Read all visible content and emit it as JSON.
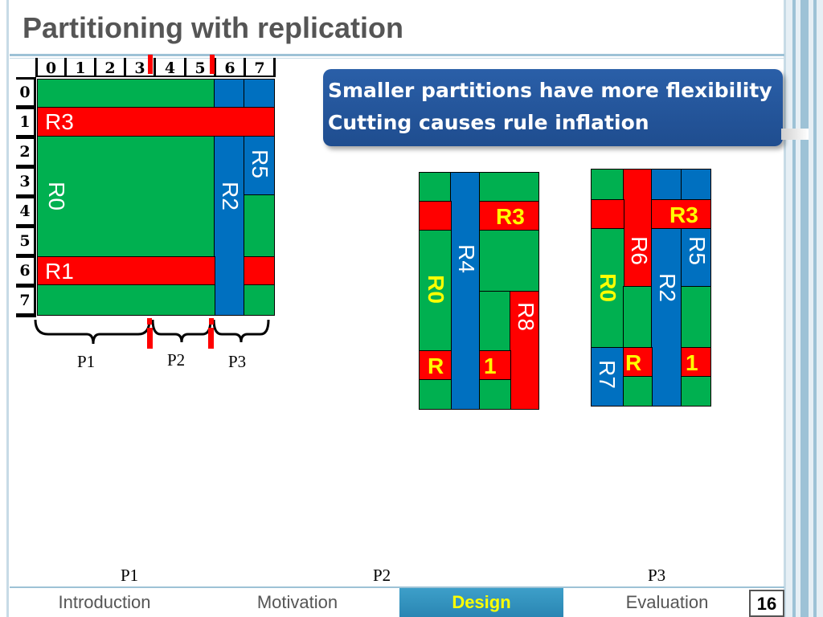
{
  "title": "Partitioning with replication",
  "grid": {
    "col_numbers": [
      "0",
      "1",
      "2",
      "3",
      "4",
      "5",
      "6",
      "7"
    ],
    "row_numbers": [
      "0",
      "1",
      "2",
      "3",
      "4",
      "5",
      "6",
      "7"
    ],
    "rules": {
      "r3": "R3",
      "r0": "R0",
      "r1": "R1",
      "r2": "R2",
      "r5": "R5"
    }
  },
  "braces": {
    "p1": "P1",
    "p2": "P2",
    "p3": "P3"
  },
  "callout": {
    "line1": "Smaller partitions have more flexibility",
    "line2": "Cutting causes rule inflation"
  },
  "switch_a": {
    "r3": "R3",
    "r4": "R4",
    "r0": "R0",
    "r8": "R8",
    "r_left": "R",
    "one": "1"
  },
  "switch_b": {
    "r3": "R3",
    "r6": "R6",
    "r5": "R5",
    "r0": "R0",
    "r2": "R2",
    "r7": "R7",
    "r_left": "R",
    "one": "1"
  },
  "switch_labels": {
    "p1": "P1",
    "p2": "P2",
    "p3": "P3"
  },
  "nav": {
    "intro": "Introduction",
    "motivation": "Motivation",
    "design": "Design",
    "evaluation": "Evaluation"
  },
  "page_number": "16",
  "colors": {
    "green": "#00b050",
    "red": "#ff0000",
    "blue": "#0070c0",
    "yellow_label": "#ffff00",
    "callout": "#1f4d8f"
  }
}
